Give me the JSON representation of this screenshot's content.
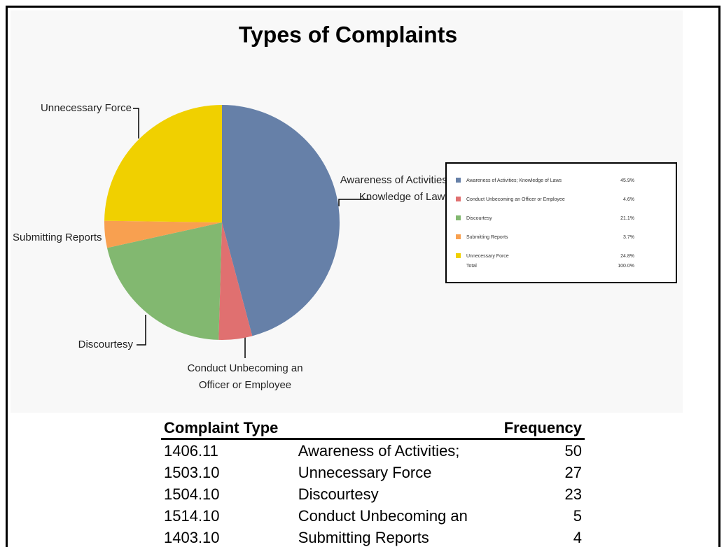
{
  "chart_data": {
    "type": "pie",
    "title": "Types of Complaints",
    "categories": [
      "Awareness of Activities; Knowledge of Laws",
      "Conduct Unbecoming an Officer or Employee",
      "Discourtesy",
      "Submitting Reports",
      "Unnecessary Force"
    ],
    "values": [
      45.9,
      4.6,
      21.1,
      3.7,
      24.8
    ],
    "value_labels": [
      "45.9%",
      "4.6%",
      "21.1%",
      "3.7%",
      "24.8%"
    ],
    "colors": [
      "#6680a8",
      "#e07070",
      "#82b870",
      "#f8a050",
      "#f0d000"
    ],
    "total_label": "Total",
    "total_value": "100.0%"
  },
  "table": {
    "header": [
      "Complaint Type",
      "Frequency"
    ],
    "rows": [
      [
        "1406.11",
        "Awareness of Activities;",
        "50"
      ],
      [
        "1503.10",
        "Unnecessary Force",
        "27"
      ],
      [
        "1504.10",
        "Discourtesy",
        "23"
      ],
      [
        "1514.10",
        "Conduct Unbecoming an",
        "5"
      ],
      [
        "1403.10",
        "Submitting Reports",
        "4"
      ]
    ]
  }
}
